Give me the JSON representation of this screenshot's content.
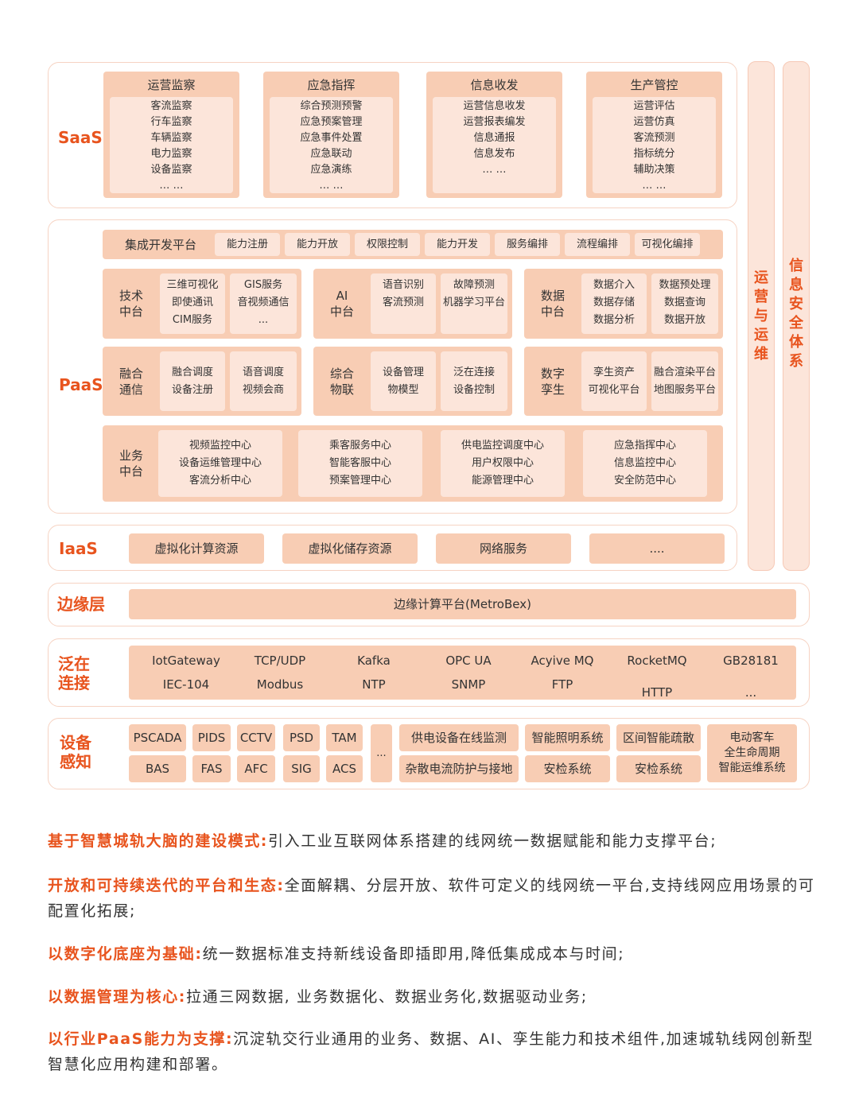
{
  "saas": {
    "label": "SaaS",
    "modules": [
      {
        "title": "运营监察",
        "items": [
          "客流监察",
          "行车监察",
          "车辆监察",
          "电力监察",
          "设备监察",
          "… …"
        ]
      },
      {
        "title": "应急指挥",
        "items": [
          "综合预测预警",
          "应急预案管理",
          "应急事件处置",
          "应急联动",
          "应急演练",
          "… …"
        ]
      },
      {
        "title": "信息收发",
        "items": [
          "运营信息收发",
          "运营报表编发",
          "信息通报",
          "信息发布",
          "… …"
        ]
      },
      {
        "title": "生产管控",
        "items": [
          "运营评估",
          "运营仿真",
          "客流预测",
          "指标统分",
          "辅助决策",
          "… …"
        ]
      }
    ]
  },
  "paas": {
    "label": "PaaS",
    "integration": {
      "title": "集成开发平台",
      "items": [
        "能力注册",
        "能力开放",
        "权限控制",
        "能力开发",
        "服务编排",
        "流程编排",
        "可视化编排"
      ]
    },
    "groups": [
      {
        "name": "技术\n中台",
        "cols": [
          [
            "三维可视化",
            "即使通讯",
            "CIM服务"
          ],
          [
            "GIS服务",
            "音视频通信",
            "..."
          ]
        ]
      },
      {
        "name": "AI\n中台",
        "cols": [
          [
            "语音识别",
            "客流预测"
          ],
          [
            "故障预测",
            "机器学习平台"
          ]
        ]
      },
      {
        "name": "数据\n中台",
        "cols": [
          [
            "数据介入",
            "数据存储",
            "数据分析"
          ],
          [
            "数据预处理",
            "数据查询",
            "数据开放"
          ]
        ]
      },
      {
        "name": "融合\n通信",
        "cols": [
          [
            "融合调度",
            "设备注册"
          ],
          [
            "语音调度",
            "视频会商"
          ]
        ]
      },
      {
        "name": "综合\n物联",
        "cols": [
          [
            "设备管理",
            "物模型"
          ],
          [
            "泛在连接",
            "设备控制"
          ]
        ]
      },
      {
        "name": "数字\n孪生",
        "cols": [
          [
            "孪生资产",
            "可视化平台"
          ],
          [
            "融合渲染平台",
            "地图服务平台"
          ]
        ]
      }
    ],
    "business": {
      "name": "业务\n中台",
      "cols": [
        [
          "视频监控中心",
          "设备运维管理中心",
          "客流分析中心"
        ],
        [
          "乘客服务中心",
          "智能客服中心",
          "预案管理中心"
        ],
        [
          "供电监控调度中心",
          "用户权限中心",
          "能源管理中心"
        ],
        [
          "应急指挥中心",
          "信息监控中心",
          "安全防范中心"
        ]
      ]
    }
  },
  "iaas": {
    "label": "IaaS",
    "items": [
      "虚拟化计算资源",
      "虚拟化储存资源",
      "网络服务",
      "...."
    ]
  },
  "edge": {
    "label": "边缘层",
    "platform": "边缘计算平台(MetroBex)"
  },
  "connect": {
    "label": "泛在\n连接",
    "row1": [
      "IotGateway",
      "TCP/UDP",
      "Kafka",
      "OPC UA",
      "Acyive MQ",
      "RocketMQ",
      "GB28181"
    ],
    "row2": [
      "IEC-104",
      "Modbus",
      "NTP",
      "SNMP",
      "FTP",
      "HTTP",
      "..."
    ]
  },
  "device": {
    "label": "设备\n感知",
    "row1": [
      "PSCADA",
      "PIDS",
      "CCTV",
      "PSD",
      "TAM"
    ],
    "row2": [
      "BAS",
      "FAS",
      "AFC",
      "SIG",
      "ACS"
    ],
    "ellipsis": "...",
    "mid1": [
      "供电设备在线监测",
      "智能照明系统",
      "区间智能疏散"
    ],
    "mid2": [
      "杂散电流防护与接地",
      "安检系统",
      "安检系统"
    ],
    "last": "电动客车\n全生命周期\n智能运维系统"
  },
  "side": {
    "ops": "运\n营\n与\n运\n维",
    "security": "信\n息\n安\n全\n体\n系"
  },
  "paragraphs": [
    {
      "key": "基于智慧城轨大脑的建设模式:",
      "text": "引入工业互联网体系搭建的线网统一数据赋能和能力支撑平台;"
    },
    {
      "key": "开放和可持续迭代的平台和生态:",
      "text": "全面解耦、分层开放、软件可定义的线网统一平台,支持线网应用场景的可配置化拓展;"
    },
    {
      "key": "以数字化底座为基础:",
      "text": "统一数据标准支持新线设备即插即用,降低集成成本与时间;"
    },
    {
      "key": "以数据管理为核心:",
      "text": "拉通三网数据, 业务数据化、数据业务化,数据驱动业务;"
    },
    {
      "key": "以行业PaaS能力为支撑:",
      "text": "沉淀轨交行业通用的业务、数据、AI、孪生能力和技术组件,加速城轨线网创新型智慧化应用构建和部署。"
    }
  ],
  "colors": {
    "accent": "#e8541e",
    "dark": "#f8cdb4",
    "light": "#fce5da"
  }
}
